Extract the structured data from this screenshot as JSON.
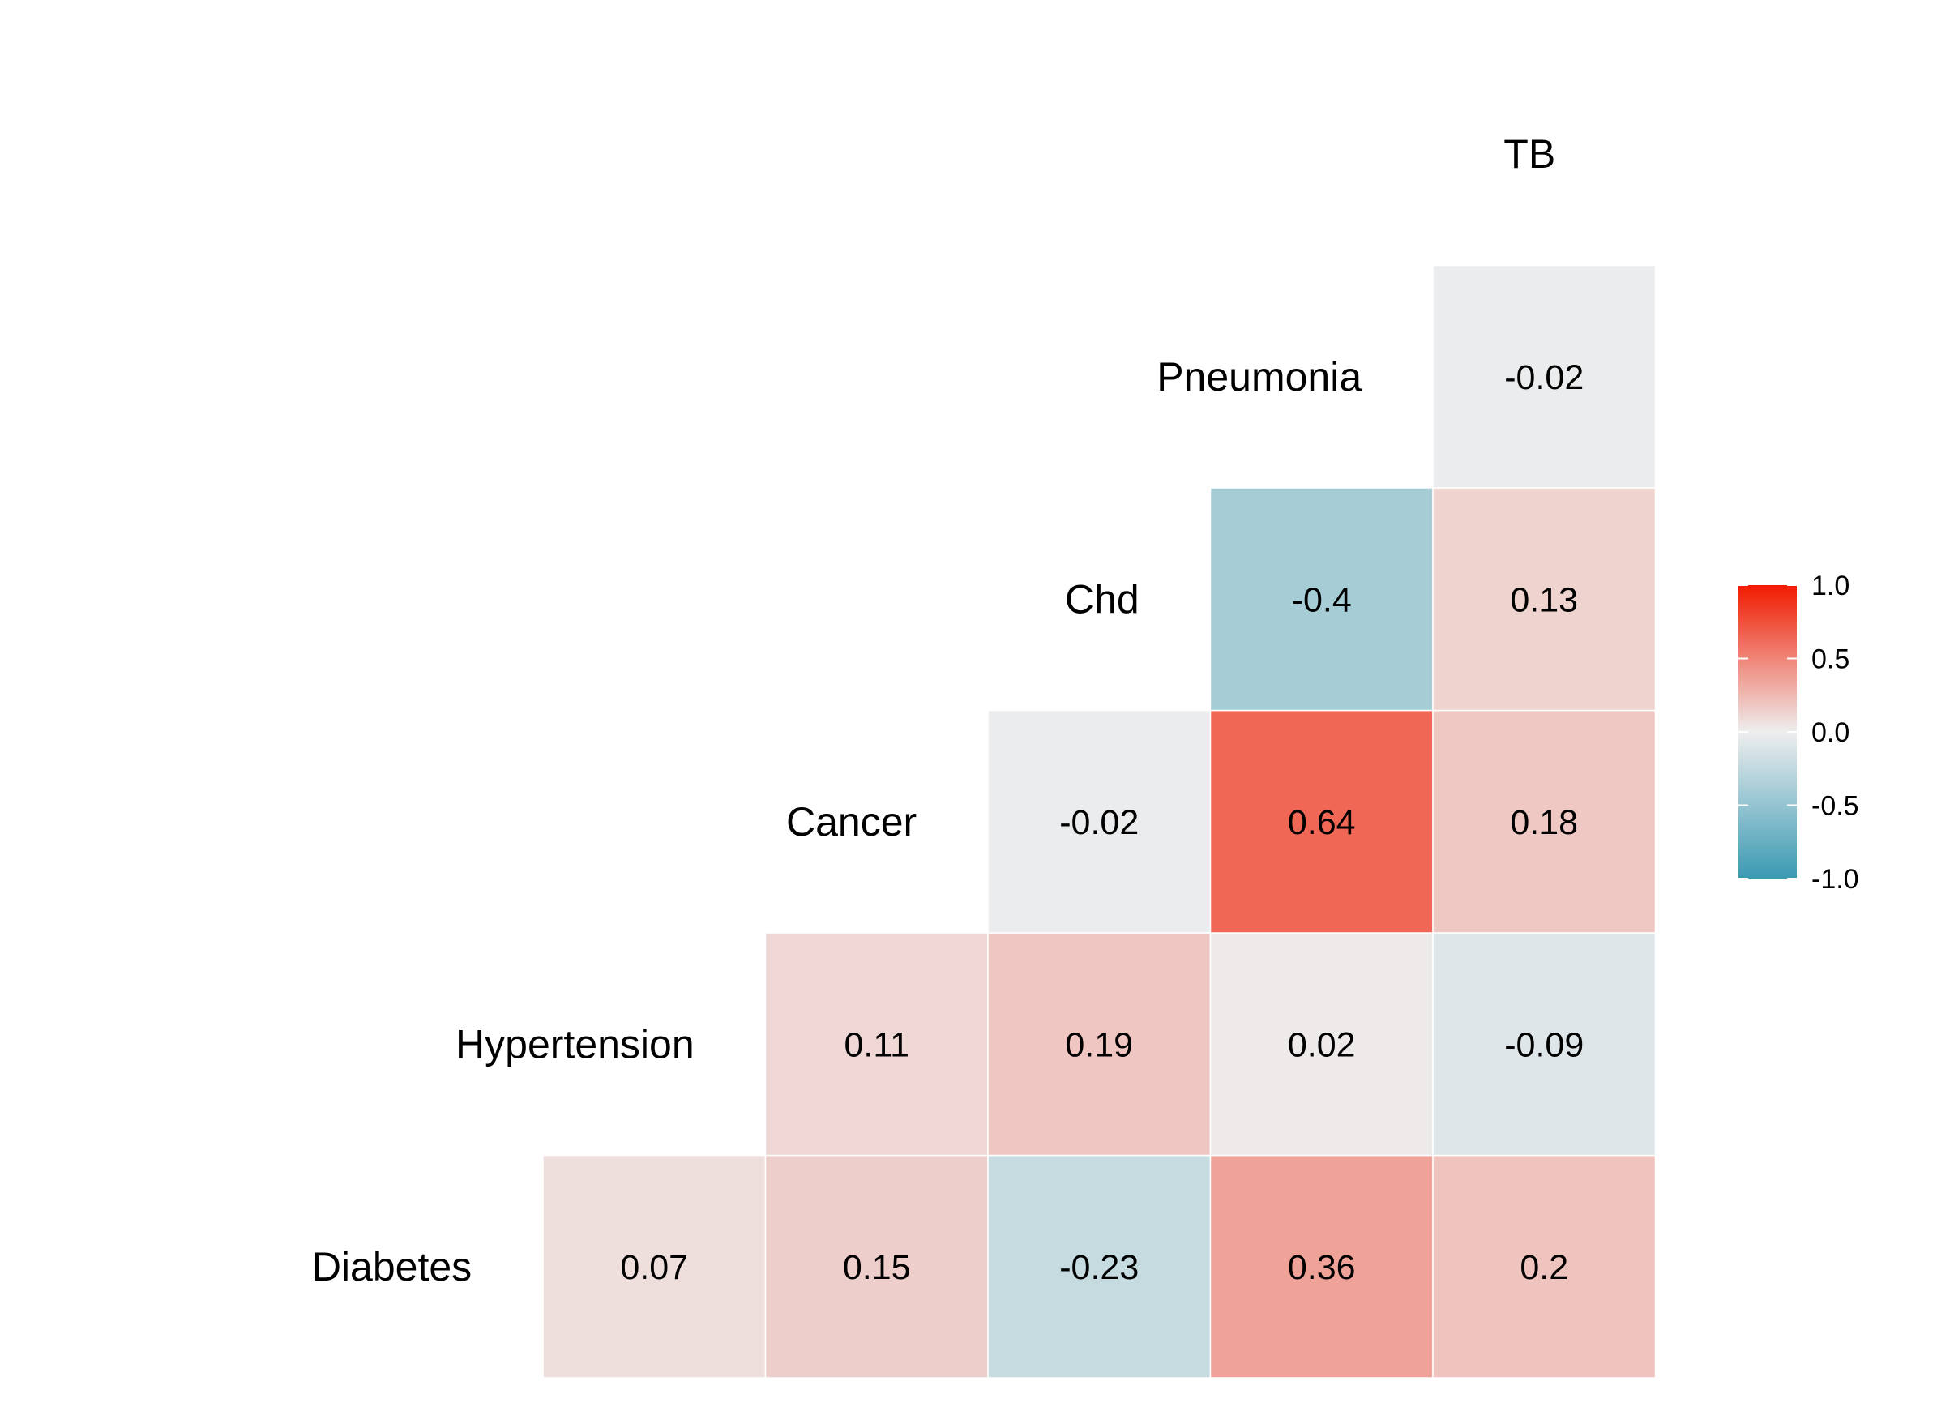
{
  "chart_data": {
    "type": "heatmap",
    "variables": [
      "Diabetes",
      "Hypertension",
      "Cancer",
      "Chd",
      "Pneumonia",
      "TB"
    ],
    "cells": [
      {
        "row": "Diabetes",
        "col": "Hypertension",
        "value": 0.07,
        "label": "0.07"
      },
      {
        "row": "Diabetes",
        "col": "Cancer",
        "value": 0.15,
        "label": "0.15"
      },
      {
        "row": "Diabetes",
        "col": "Chd",
        "value": -0.23,
        "label": "-0.23"
      },
      {
        "row": "Diabetes",
        "col": "Pneumonia",
        "value": 0.36,
        "label": "0.36"
      },
      {
        "row": "Diabetes",
        "col": "TB",
        "value": 0.2,
        "label": "0.2"
      },
      {
        "row": "Hypertension",
        "col": "Cancer",
        "value": 0.11,
        "label": "0.11"
      },
      {
        "row": "Hypertension",
        "col": "Chd",
        "value": 0.19,
        "label": "0.19"
      },
      {
        "row": "Hypertension",
        "col": "Pneumonia",
        "value": 0.02,
        "label": "0.02"
      },
      {
        "row": "Hypertension",
        "col": "TB",
        "value": -0.09,
        "label": "-0.09"
      },
      {
        "row": "Cancer",
        "col": "Chd",
        "value": -0.02,
        "label": "-0.02"
      },
      {
        "row": "Cancer",
        "col": "Pneumonia",
        "value": 0.64,
        "label": "0.64"
      },
      {
        "row": "Cancer",
        "col": "TB",
        "value": 0.18,
        "label": "0.18"
      },
      {
        "row": "Chd",
        "col": "Pneumonia",
        "value": -0.4,
        "label": "-0.4"
      },
      {
        "row": "Chd",
        "col": "TB",
        "value": 0.13,
        "label": "0.13"
      },
      {
        "row": "Pneumonia",
        "col": "TB",
        "value": -0.02,
        "label": "-0.02"
      }
    ],
    "legend": {
      "range": [
        -1.0,
        1.0
      ],
      "ticks": [
        "1.0",
        "0.5",
        "0.0",
        "-0.5",
        "-1.0"
      ],
      "tick_values": [
        1.0,
        0.5,
        0.0,
        -0.5,
        -1.0
      ],
      "placement": "right"
    },
    "colors": {
      "low": "#3A9AB2",
      "mid": "#EEEEEE",
      "high": "#F11B00"
    }
  }
}
